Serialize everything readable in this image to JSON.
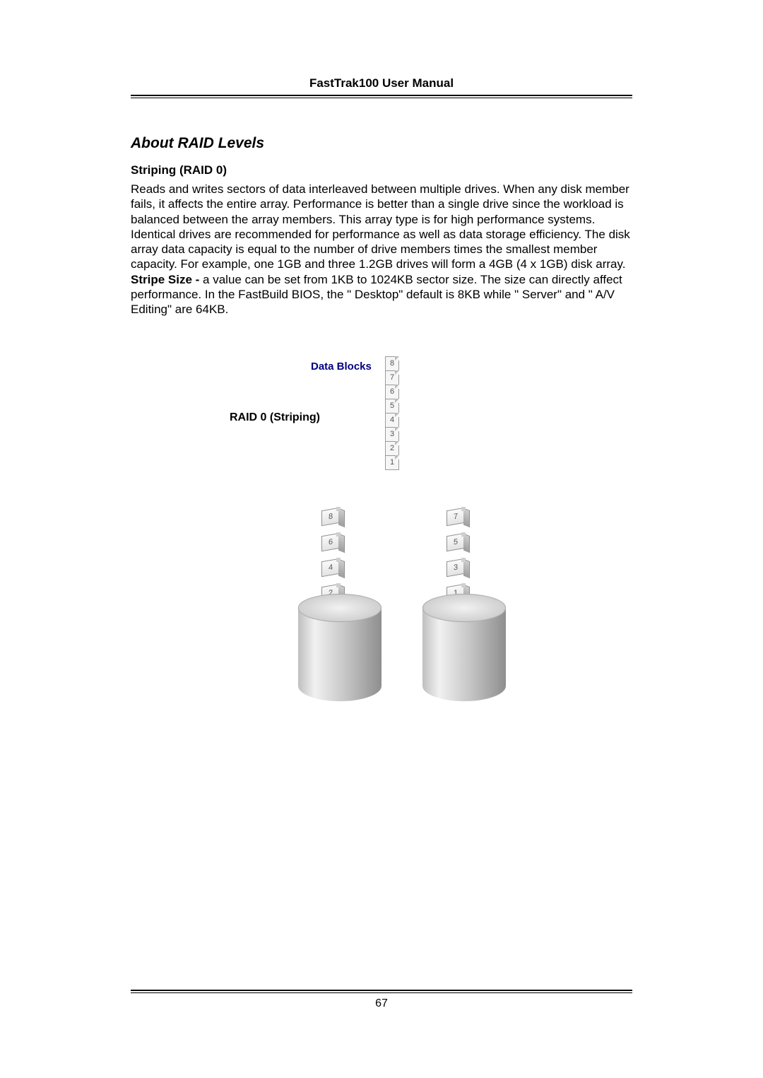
{
  "header": {
    "title": "FastTrak100 User Manual"
  },
  "section": {
    "title": "About RAID Levels"
  },
  "subsection": {
    "heading": "Striping (RAID 0)"
  },
  "paragraph": {
    "body1": "Reads and writes sectors of data interleaved between multiple drives. When any disk member fails, it affects the entire array. Performance is better than a single drive since the workload is balanced between the array members. This array type is for high performance systems. Identical drives are recommended for performance as well as data storage efficiency. The disk array data capacity is equal to the number of drive members times the smallest member capacity. For example, one 1GB and three 1.2GB drives will form a 4GB (4 x 1GB) disk array.",
    "stripe_bold": "Stripe Size - ",
    "body2": "a value can be set from 1KB to 1024KB sector size. The size can directly affect performance.  In the FastBuild BIOS, the \" Desktop\"  default is 8KB while \" Server\"    and \" A/V Editing\"  are 64KB."
  },
  "diagram": {
    "label_data_blocks": "Data Blocks",
    "label_raid0": "RAID 0 (Striping)",
    "stack_vertical": [
      "8",
      "7",
      "6",
      "5",
      "4",
      "3",
      "2",
      "1"
    ],
    "left_drive_blocks": [
      "8",
      "6",
      "4",
      "2"
    ],
    "right_drive_blocks": [
      "7",
      "5",
      "3",
      "1"
    ],
    "colors": {
      "label_navy": "#000080",
      "block_fill": "#f6f6f6",
      "block_border": "#9a9a9a",
      "cylinder_light": "#f1f1f1",
      "cylinder_dark": "#8e8e8e"
    }
  },
  "footer": {
    "page_number": "67"
  }
}
